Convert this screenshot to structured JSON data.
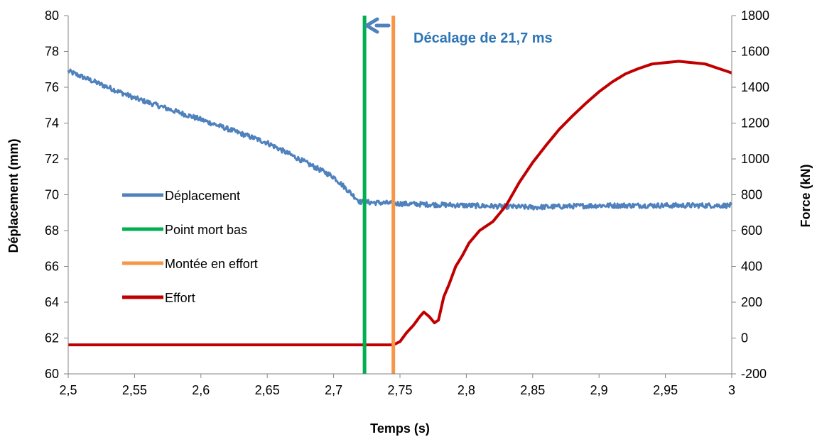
{
  "chart_data": {
    "type": "line",
    "xlabel": "Temps (s)",
    "ylabel_left": "Déplacement (mm)",
    "ylabel_right": "Force (kN)",
    "xlim": [
      2.5,
      3.0
    ],
    "ylim_left": [
      60,
      80
    ],
    "ylim_right": [
      -200,
      1800
    ],
    "x_ticks": [
      {
        "value": 2.5,
        "label": "2,5"
      },
      {
        "value": 2.55,
        "label": "2,55"
      },
      {
        "value": 2.6,
        "label": "2,6"
      },
      {
        "value": 2.65,
        "label": "2,65"
      },
      {
        "value": 2.7,
        "label": "2,7"
      },
      {
        "value": 2.75,
        "label": "2,75"
      },
      {
        "value": 2.8,
        "label": "2,8"
      },
      {
        "value": 2.85,
        "label": "2,85"
      },
      {
        "value": 2.9,
        "label": "2,9"
      },
      {
        "value": 2.95,
        "label": "2,95"
      },
      {
        "value": 3.0,
        "label": "3"
      }
    ],
    "y_left_ticks": [
      {
        "value": 60,
        "label": "60"
      },
      {
        "value": 62,
        "label": "62"
      },
      {
        "value": 64,
        "label": "64"
      },
      {
        "value": 66,
        "label": "66"
      },
      {
        "value": 68,
        "label": "68"
      },
      {
        "value": 70,
        "label": "70"
      },
      {
        "value": 72,
        "label": "72"
      },
      {
        "value": 74,
        "label": "74"
      },
      {
        "value": 76,
        "label": "76"
      },
      {
        "value": 78,
        "label": "78"
      },
      {
        "value": 80,
        "label": "80"
      }
    ],
    "y_right_ticks": [
      {
        "value": -200,
        "label": "-200"
      },
      {
        "value": 0,
        "label": "0"
      },
      {
        "value": 200,
        "label": "200"
      },
      {
        "value": 400,
        "label": "400"
      },
      {
        "value": 600,
        "label": "600"
      },
      {
        "value": 800,
        "label": "800"
      },
      {
        "value": 1000,
        "label": "1000"
      },
      {
        "value": 1200,
        "label": "1200"
      },
      {
        "value": 1400,
        "label": "1400"
      },
      {
        "value": 1600,
        "label": "1600"
      },
      {
        "value": 1800,
        "label": "1800"
      }
    ],
    "grid": false,
    "legend_position": "center-left",
    "series": [
      {
        "name": "Déplacement",
        "axis": "left",
        "color": "#4f81bd",
        "style": "noisy-line",
        "x": [
          2.5,
          2.55,
          2.6,
          2.65,
          2.7,
          2.72,
          2.75,
          2.8,
          2.85,
          2.9,
          2.95,
          3.0
        ],
        "y": [
          76.9,
          75.4,
          74.2,
          72.9,
          71.0,
          69.6,
          69.5,
          69.4,
          69.3,
          69.4,
          69.4,
          69.4
        ]
      },
      {
        "name": "Point mort bas",
        "axis": "left",
        "color": "#00b050",
        "style": "vertical",
        "x": [
          2.7233,
          2.7233
        ],
        "y": [
          60,
          80
        ]
      },
      {
        "name": "Montée en effort",
        "axis": "left",
        "color": "#f79646",
        "style": "vertical",
        "x": [
          2.745,
          2.745
        ],
        "y": [
          60,
          80
        ]
      },
      {
        "name": "Effort",
        "axis": "right",
        "color": "#c00000",
        "style": "line",
        "x": [
          2.5,
          2.6,
          2.7,
          2.745,
          2.75,
          2.755,
          2.76,
          2.765,
          2.768,
          2.772,
          2.776,
          2.779,
          2.783,
          2.787,
          2.792,
          2.797,
          2.802,
          2.81,
          2.82,
          2.83,
          2.84,
          2.85,
          2.86,
          2.87,
          2.88,
          2.89,
          2.9,
          2.91,
          2.92,
          2.93,
          2.94,
          2.96,
          2.98,
          3.0
        ],
        "y": [
          -38,
          -38,
          -38,
          -38,
          -20,
          30,
          70,
          120,
          145,
          120,
          85,
          100,
          230,
          300,
          400,
          460,
          530,
          600,
          650,
          740,
          870,
          980,
          1075,
          1165,
          1240,
          1310,
          1375,
          1430,
          1475,
          1505,
          1530,
          1545,
          1530,
          1480
        ]
      }
    ],
    "annotations": [
      {
        "text": "Décalage de 21,7 ms",
        "color": "#2e75b6",
        "arrow_color": "#4f81bd"
      }
    ]
  }
}
